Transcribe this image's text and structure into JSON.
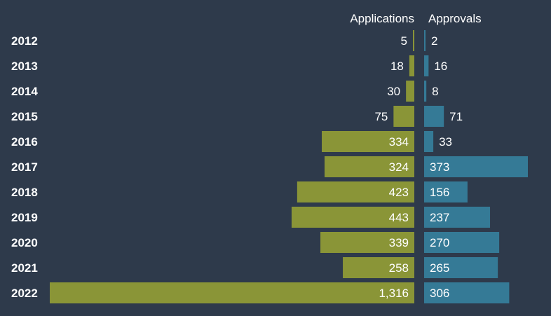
{
  "chart_data": {
    "type": "bar",
    "orientation": "horizontal",
    "layout": "butterfly",
    "categories": [
      "2012",
      "2013",
      "2014",
      "2015",
      "2016",
      "2017",
      "2018",
      "2019",
      "2020",
      "2021",
      "2022"
    ],
    "series": [
      {
        "name": "Applications",
        "values": [
          5,
          18,
          30,
          75,
          334,
          324,
          423,
          443,
          339,
          258,
          1316
        ],
        "labels": [
          "5",
          "18",
          "30",
          "75",
          "334",
          "324",
          "423",
          "443",
          "339",
          "258",
          "1,316"
        ],
        "color": "#8a9537",
        "direction": "left"
      },
      {
        "name": "Approvals",
        "values": [
          2,
          16,
          8,
          71,
          33,
          373,
          156,
          237,
          270,
          265,
          306
        ],
        "labels": [
          "2",
          "16",
          "8",
          "71",
          "33",
          "373",
          "156",
          "237",
          "270",
          "265",
          "306"
        ],
        "color": "#357a96",
        "direction": "right"
      }
    ],
    "background": "#2e3a4b",
    "grid": false,
    "legend": "top"
  }
}
